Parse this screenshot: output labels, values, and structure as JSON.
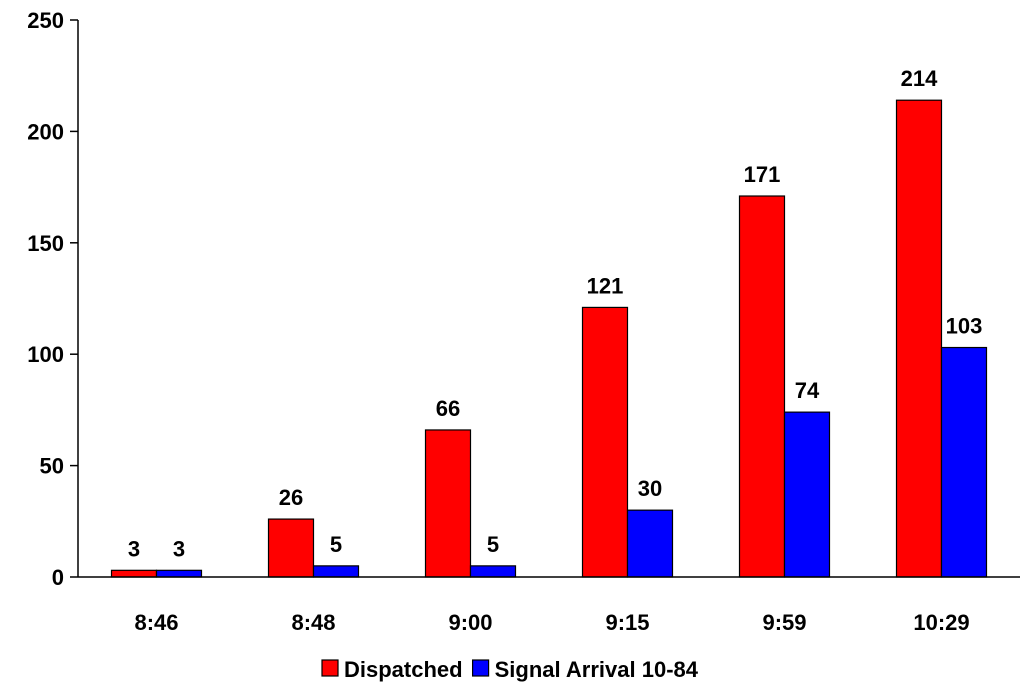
{
  "chart_data": {
    "type": "bar",
    "title": "",
    "xlabel": "",
    "ylabel": "",
    "categories": [
      "8:46",
      "8:48",
      "9:00",
      "9:15",
      "9:59",
      "10:29"
    ],
    "series": [
      {
        "name": "Dispatched",
        "values": [
          3,
          26,
          66,
          121,
          171,
          214
        ],
        "color": "#ff0000"
      },
      {
        "name": "Signal Arrival 10-84",
        "values": [
          3,
          5,
          5,
          30,
          74,
          103
        ],
        "color": "#0000ff"
      }
    ],
    "ylim": [
      0,
      250
    ],
    "yticks": [
      0,
      50,
      100,
      150,
      200,
      250
    ],
    "grid": false,
    "legend_position": "bottom-center",
    "data_labels": true
  }
}
